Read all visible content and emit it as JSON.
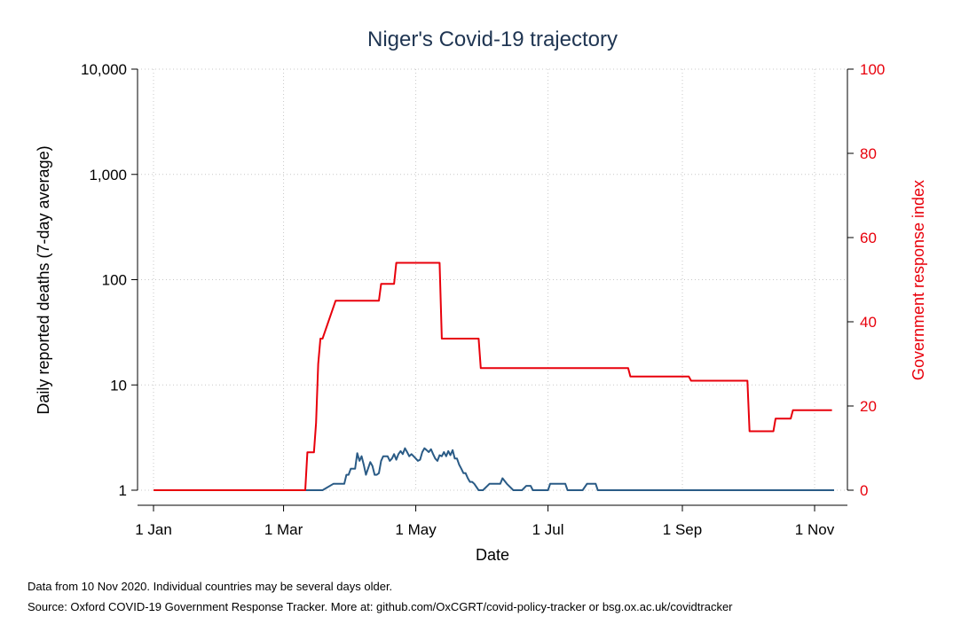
{
  "chart_data": {
    "type": "line",
    "title": "Niger's Covid-19 trajectory",
    "xlabel": "Date",
    "ylabel_left": "Daily reported deaths (7-day average)",
    "ylabel_right": "Government response index",
    "x_tick_labels": [
      "1 Jan",
      "1 Mar",
      "1 May",
      "1 Jul",
      "1 Sep",
      "1 Nov"
    ],
    "x_ticks_day_of_year": [
      0,
      60,
      121,
      182,
      244,
      305
    ],
    "xlim_day_of_year": [
      0,
      314
    ],
    "y_left_scale": "log",
    "y_left_ticks": [
      1,
      10,
      100,
      1000,
      10000
    ],
    "y_left_tick_labels": [
      "1",
      "10",
      "100",
      "1,000",
      "10,000"
    ],
    "y_left_range": [
      1,
      10000
    ],
    "y_right_ticks": [
      0,
      20,
      40,
      60,
      80,
      100
    ],
    "y_right_range": [
      0,
      100
    ],
    "grid": true,
    "series": [
      {
        "axis": "left",
        "color": "#2a5b86",
        "x_day_of_year": [
          0,
          70,
          74,
          78,
          83,
          84,
          88,
          89,
          90,
          91,
          93,
          94,
          95,
          96,
          97,
          98,
          100,
          101,
          102,
          103,
          104,
          105,
          106,
          108,
          109,
          110,
          111,
          112,
          113,
          114,
          115,
          116,
          117,
          118,
          119,
          120,
          121,
          122,
          123,
          124,
          125,
          126,
          127,
          128,
          129,
          130,
          131,
          132,
          133,
          134,
          135,
          136,
          137,
          138,
          139,
          140,
          141,
          142,
          143,
          144,
          145,
          146,
          147,
          148,
          150,
          152,
          155,
          160,
          161,
          163,
          166,
          168,
          170,
          172,
          174,
          175,
          177,
          182,
          183,
          185,
          190,
          191,
          195,
          198,
          200,
          204,
          205,
          314
        ],
        "values": [
          1,
          1,
          1,
          1,
          1.15,
          1.15,
          1.15,
          1.4,
          1.4,
          1.6,
          1.6,
          2.25,
          1.9,
          2.1,
          1.75,
          1.4,
          1.85,
          1.7,
          1.4,
          1.4,
          1.45,
          1.9,
          2.1,
          2.1,
          1.9,
          2.0,
          2.2,
          1.95,
          2.2,
          2.35,
          2.2,
          2.5,
          2.3,
          2.1,
          2.2,
          2.1,
          2.0,
          1.9,
          1.95,
          2.3,
          2.5,
          2.4,
          2.3,
          2.45,
          2.2,
          2.0,
          1.9,
          2.15,
          2.1,
          2.3,
          2.1,
          2.35,
          2.15,
          2.4,
          2.0,
          2.0,
          1.75,
          1.6,
          1.45,
          1.45,
          1.3,
          1.2,
          1.2,
          1.15,
          1.0,
          1.0,
          1.15,
          1.15,
          1.3,
          1.15,
          1.0,
          1.0,
          1.0,
          1.1,
          1.1,
          1.0,
          1.0,
          1.0,
          1.15,
          1.15,
          1.15,
          1.0,
          1.0,
          1.0,
          1.15,
          1.15,
          1.0,
          1.0
        ]
      },
      {
        "axis": "right",
        "color": "#e8000b",
        "x_day_of_year": [
          0,
          70,
          71,
          74,
          75,
          76,
          77,
          78,
          84,
          85,
          104,
          105,
          111,
          112,
          132,
          133,
          150,
          151,
          219,
          220,
          247,
          248,
          274,
          275,
          286,
          287,
          294,
          295,
          313
        ],
        "values": [
          0,
          0,
          9,
          9,
          16,
          30,
          36,
          36,
          45,
          45,
          45,
          49,
          49,
          54,
          54,
          36,
          36,
          29,
          29,
          27,
          27,
          26,
          26,
          14,
          14,
          17,
          17,
          19,
          19
        ]
      }
    ]
  },
  "footnotes": {
    "line1": "Data from 10 Nov 2020. Individual countries may be several days older.",
    "line2": "Source: Oxford COVID-19 Government Response Tracker. More at: github.com/OxCGRT/covid-policy-tracker or bsg.ox.ac.uk/covidtracker"
  }
}
